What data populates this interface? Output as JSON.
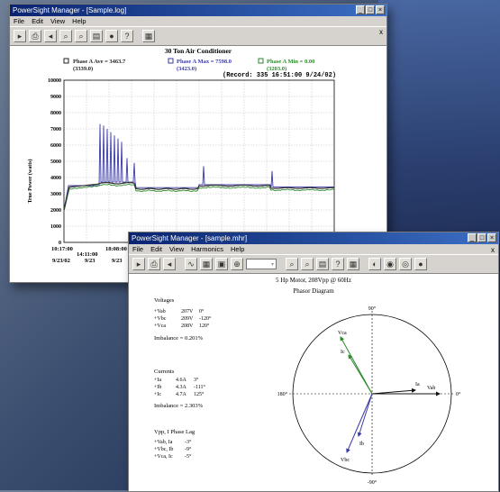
{
  "win1": {
    "title": "PowerSight Manager - [Sample.log]",
    "menu": [
      "File",
      "Edit",
      "View",
      "Help"
    ],
    "close_mark": "x",
    "chart_title": "30 Ton Air Conditioner",
    "record": "(Record: 335 16:51:00  9/24/02)",
    "legend": [
      {
        "label": "Phase A Ave = 3463.7",
        "sub": "(3339.0)",
        "color": "#222222"
      },
      {
        "label": "Phase A Max = 7598.0",
        "sub": "(3423.0)",
        "color": "#3a3aa8"
      },
      {
        "label": "Phase A Min = 0.00",
        "sub": "(3203.0)",
        "color": "#2c8a2c"
      }
    ],
    "ylabel": "True Power (watts)",
    "yticks": [
      "10000",
      "9000",
      "8000",
      "7000",
      "6000",
      "5000",
      "4000",
      "3000",
      "2000",
      "1000",
      "0"
    ],
    "xticks": [
      {
        "t": "10:17:00",
        "d": "9/23/02"
      },
      {
        "t": "14:11:00",
        "d": "9/23"
      },
      {
        "t": "18:08:00",
        "d": "9/23"
      }
    ]
  },
  "win2": {
    "title": "PowerSight Manager - [sample.mhr]",
    "menu": [
      "File",
      "Edit",
      "View",
      "Harmonics",
      "Help"
    ],
    "close_mark": "x",
    "subtitle": "5 Hp Motor, 208Vpp @ 60Hz",
    "diagram_title": "Phasor Diagram",
    "voltages_heading": "Voltages",
    "voltages": [
      {
        "name": "+Vab",
        "mag": "207V",
        "ang": "0°"
      },
      {
        "name": "+Vbc",
        "mag": "209V",
        "ang": "-120°"
      },
      {
        "name": "+Vca",
        "mag": "208V",
        "ang": "120°"
      }
    ],
    "v_imbalance": "Imbalance = 0.201%",
    "currents_heading": "Currents",
    "currents": [
      {
        "name": "+Ia",
        "mag": "4.6A",
        "ang": "3°"
      },
      {
        "name": "+Ib",
        "mag": "4.3A",
        "ang": "-111°"
      },
      {
        "name": "+Ic",
        "mag": "4.7A",
        "ang": "125°"
      }
    ],
    "i_imbalance": "Imbalance = 2.303%",
    "lag_heading": "Vpp, I Phase Lag",
    "lags": [
      {
        "name": "+Vab, Ia",
        "ang": "-3°"
      },
      {
        "name": "+Vbc, Ib",
        "ang": "-9°"
      },
      {
        "name": "+Vca, Ic",
        "ang": "-5°"
      }
    ],
    "axis_labels": {
      "top": "90°",
      "left": "180°",
      "right": "0°",
      "bottom": "-90°"
    },
    "phasor_labels": {
      "vab": "Vab",
      "ia": "Ia",
      "vca": "Vca",
      "ic": "Ic",
      "vbc": "Vbc",
      "ib": "Ib"
    }
  }
}
